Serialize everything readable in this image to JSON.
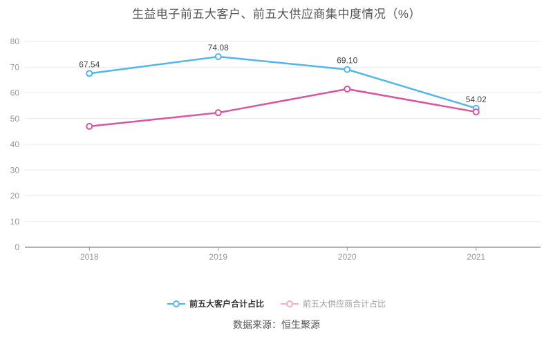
{
  "chart_data": {
    "type": "line",
    "title": "生益电子前五大客户、前五大供应商集中度情况（%）",
    "categories": [
      "2018",
      "2019",
      "2020",
      "2021"
    ],
    "series": [
      {
        "name": "前五大客户合计占比",
        "color": "#54b5e8",
        "values": [
          67.54,
          74.08,
          69.1,
          54.02
        ],
        "point_labels": [
          "67.54",
          "74.08",
          "69.10",
          "54.02"
        ],
        "legend_icon_color": "#54b5e8",
        "legend_text_color": "#333333",
        "legend_bold": true
      },
      {
        "name": "前五大供应商合计占比",
        "color": "#d8569e",
        "values": [
          47.0,
          52.3,
          61.5,
          52.6
        ],
        "point_labels": [],
        "legend_icon_color": "#f4abce",
        "legend_text_color": "#999999",
        "legend_bold": false
      }
    ],
    "ylim": [
      0,
      80
    ],
    "yticks": [
      0,
      10,
      20,
      30,
      40,
      50,
      60,
      70,
      80
    ],
    "grid": true,
    "legend_position": "bottom",
    "axis_colors": {
      "gridline": "#e6ebf2",
      "axis_line": "#666666",
      "tick_label": "#999999",
      "point_label": "#444444"
    }
  },
  "source_note": "数据来源：恒生聚源"
}
